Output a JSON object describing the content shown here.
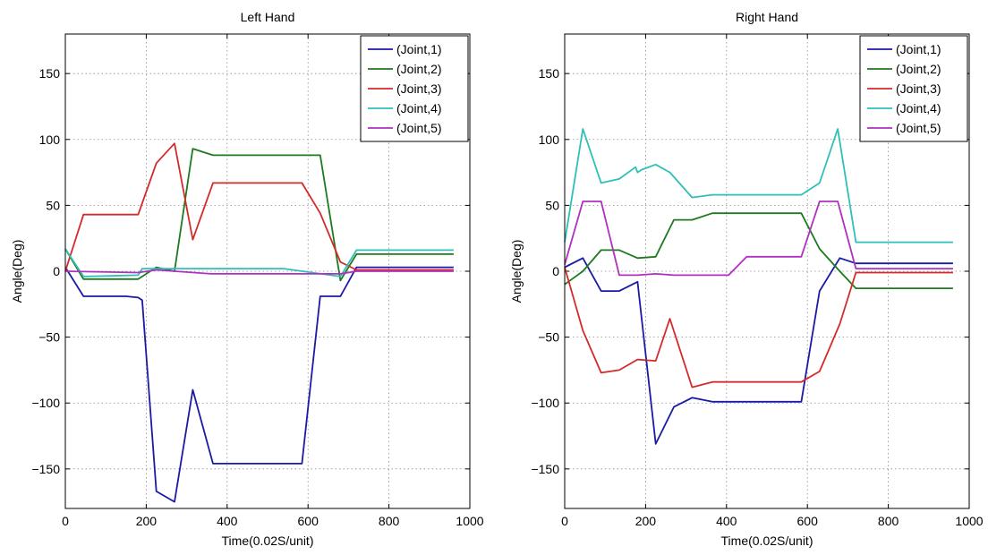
{
  "figure": {
    "background": "#ffffff"
  },
  "chart_data": [
    {
      "type": "line",
      "title": "Left Hand",
      "xlabel": "Time(0.02S/unit)",
      "ylabel": "Angle(Deg)",
      "xlim": [
        0,
        1000
      ],
      "ylim": [
        -180,
        180
      ],
      "xticks": [
        0,
        200,
        400,
        600,
        800,
        1000
      ],
      "yticks": [
        -150,
        -100,
        -50,
        0,
        50,
        100,
        150
      ],
      "grid": true,
      "legend_position": "top-right",
      "series": [
        {
          "name": "(Joint,1)",
          "color": "#1a1aa6",
          "x": [
            0,
            45,
            150,
            180,
            190,
            225,
            270,
            315,
            365,
            585,
            630,
            680,
            720,
            960
          ],
          "y": [
            3,
            -19,
            -19,
            -20,
            -22,
            -167,
            -175,
            -90,
            -146,
            -146,
            -19,
            -19,
            3,
            3
          ]
        },
        {
          "name": "(Joint,2)",
          "color": "#1e7a1e",
          "x": [
            0,
            45,
            180,
            225,
            270,
            315,
            365,
            630,
            680,
            720,
            960
          ],
          "y": [
            17,
            -6,
            -6,
            3,
            0,
            93,
            88,
            88,
            -7,
            13,
            13
          ]
        },
        {
          "name": "(Joint,3)",
          "color": "#d42a2a",
          "x": [
            0,
            45,
            180,
            225,
            270,
            315,
            365,
            585,
            630,
            680,
            720,
            960
          ],
          "y": [
            0,
            43,
            43,
            82,
            97,
            24,
            67,
            67,
            44,
            7,
            1,
            1
          ]
        },
        {
          "name": "(Joint,4)",
          "color": "#2ec0b8",
          "x": [
            0,
            45,
            180,
            190,
            540,
            680,
            720,
            960
          ],
          "y": [
            17,
            -4,
            -3,
            2,
            2,
            -4,
            16,
            16
          ]
        },
        {
          "name": "(Joint,5)",
          "color": "#b030c0",
          "x": [
            0,
            180,
            225,
            360,
            680,
            720,
            960
          ],
          "y": [
            0,
            -1,
            1,
            -2,
            -2,
            0,
            0
          ]
        }
      ]
    },
    {
      "type": "line",
      "title": "Right Hand",
      "xlabel": "Time(0.02S/unit)",
      "ylabel": "Angle(Deg)",
      "xlim": [
        0,
        1000
      ],
      "ylim": [
        -180,
        180
      ],
      "xticks": [
        0,
        200,
        400,
        600,
        800,
        1000
      ],
      "yticks": [
        -150,
        -100,
        -50,
        0,
        50,
        100,
        150
      ],
      "grid": true,
      "legend_position": "top-right",
      "series": [
        {
          "name": "(Joint,1)",
          "color": "#1a1aa6",
          "x": [
            0,
            45,
            90,
            135,
            180,
            225,
            270,
            315,
            365,
            585,
            630,
            680,
            720,
            960
          ],
          "y": [
            3,
            10,
            -15,
            -15,
            -8,
            -131,
            -103,
            -96,
            -99,
            -99,
            -15,
            10,
            6,
            6
          ]
        },
        {
          "name": "(Joint,2)",
          "color": "#1e7a1e",
          "x": [
            0,
            45,
            90,
            135,
            180,
            225,
            270,
            315,
            365,
            585,
            630,
            680,
            720,
            960
          ],
          "y": [
            -10,
            0,
            16,
            16,
            10,
            11,
            39,
            39,
            44,
            44,
            17,
            0,
            -13,
            -13
          ]
        },
        {
          "name": "(Joint,3)",
          "color": "#d42a2a",
          "x": [
            0,
            45,
            90,
            135,
            180,
            225,
            260,
            315,
            365,
            585,
            630,
            680,
            720,
            960
          ],
          "y": [
            3,
            -45,
            -77,
            -75,
            -67,
            -68,
            -36,
            -88,
            -84,
            -84,
            -76,
            -40,
            -1,
            -1
          ]
        },
        {
          "name": "(Joint,4)",
          "color": "#2ec0b8",
          "x": [
            0,
            45,
            90,
            135,
            175,
            180,
            190,
            225,
            260,
            315,
            365,
            585,
            630,
            675,
            720,
            960
          ],
          "y": [
            22,
            108,
            67,
            70,
            79,
            75,
            77,
            81,
            75,
            56,
            58,
            58,
            67,
            108,
            22,
            22
          ]
        },
        {
          "name": "(Joint,5)",
          "color": "#b030c0",
          "x": [
            0,
            45,
            90,
            135,
            180,
            225,
            270,
            315,
            365,
            405,
            450,
            585,
            630,
            675,
            720,
            960
          ],
          "y": [
            5,
            53,
            53,
            -3,
            -3,
            -2,
            -3,
            -3,
            -3,
            -3,
            11,
            11,
            53,
            53,
            2,
            2
          ]
        }
      ]
    }
  ]
}
